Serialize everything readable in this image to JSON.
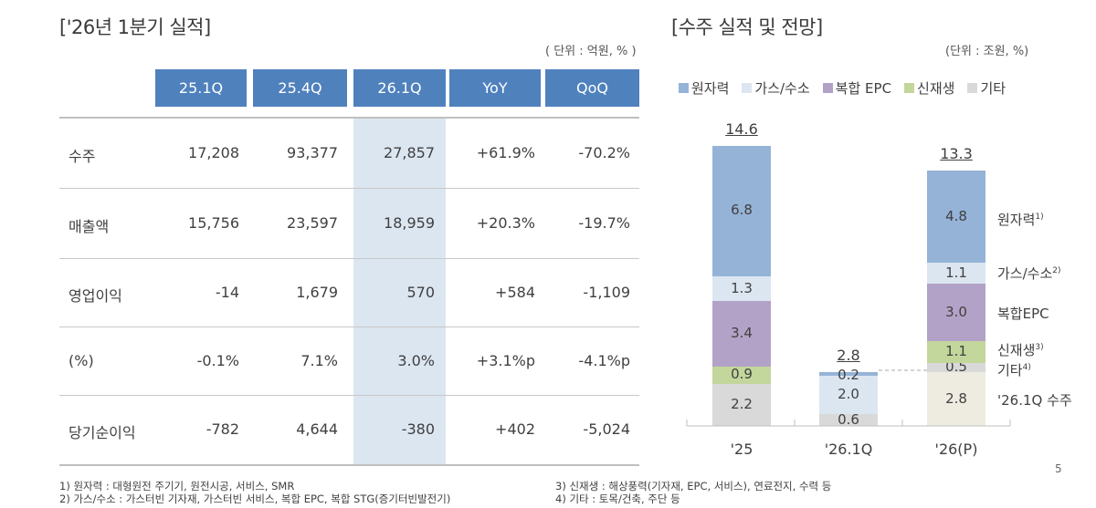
{
  "left": {
    "title": "['26년 1분기 실적]",
    "unit": "( 단위 : 억원, % )",
    "table": {
      "columns": [
        "25.1Q",
        "25.4Q",
        "26.1Q",
        "YoY",
        "QoQ"
      ],
      "highlight_column": "26.1Q",
      "rows": [
        {
          "label": "수주",
          "values": [
            "17,208",
            "93,377",
            "27,857",
            "+61.9%",
            "-70.2%"
          ]
        },
        {
          "label": "매출액",
          "values": [
            "15,756",
            "23,597",
            "18,959",
            "+20.3%",
            "-19.7%"
          ]
        },
        {
          "label": "영업이익",
          "values": [
            "-14",
            "1,679",
            "570",
            "+584",
            "-1,109"
          ]
        },
        {
          "label": "(%)",
          "values": [
            "-0.1%",
            "7.1%",
            "3.0%",
            "+3.1%p",
            "-4.1%p"
          ]
        },
        {
          "label": "당기순이익",
          "values": [
            "-782",
            "4,644",
            "-380",
            "+402",
            "-5,024"
          ]
        }
      ]
    }
  },
  "right": {
    "title": "[수주 실적 및 전망]",
    "unit": "(단위 : 조원, %)"
  },
  "colors": {
    "header": "#4f81bd",
    "highlight": "#dce6f1",
    "nuclear": "#95b3d7",
    "gas_hydrogen": "#dce6f1",
    "combined_epc": "#b3a2c7",
    "renewable": "#c3d69b",
    "other": "#d9d9d9",
    "q1_orders": "#eeece1"
  },
  "chart_data": {
    "type": "bar",
    "stacked": true,
    "title": "[수주 실적 및 전망]",
    "unit": "(단위 : 조원, %)",
    "categories": [
      "'25",
      "'26.1Q",
      "'26(P)"
    ],
    "totals": [
      "14.6",
      "2.8",
      "13.3"
    ],
    "legend": [
      "원자력",
      "가스/수소",
      "복합 EPC",
      "신재생",
      "기타"
    ],
    "legend_position": "top",
    "series": [
      {
        "name": "'26.1Q 수주",
        "key": "q1_orders",
        "values": [
          0,
          0,
          2.8
        ]
      },
      {
        "name": "기타",
        "key": "other",
        "values": [
          2.2,
          0.6,
          0.5
        ]
      },
      {
        "name": "신재생",
        "key": "renewable",
        "values": [
          0.9,
          0,
          1.1
        ]
      },
      {
        "name": "복합 EPC",
        "key": "combined_epc",
        "values": [
          3.4,
          0,
          3.0
        ]
      },
      {
        "name": "가스/수소",
        "key": "gas_hydrogen",
        "values": [
          1.3,
          2.0,
          1.1
        ]
      },
      {
        "name": "원자력",
        "key": "nuclear",
        "values": [
          6.8,
          0.2,
          4.8
        ]
      }
    ],
    "side_labels": [
      {
        "text": "원자력",
        "sup": "1)"
      },
      {
        "text": "가스/수소",
        "sup": "2)"
      },
      {
        "text": "복합EPC",
        "sup": ""
      },
      {
        "text": "신재생",
        "sup": "3)"
      },
      {
        "text": "기타",
        "sup": "4)"
      },
      {
        "text": "'26.1Q 수주",
        "sup": ""
      }
    ],
    "ylim": [
      0,
      14.6
    ]
  },
  "footnotes": [
    "1) 원자력 : 대형원전 주기기, 원전시공, 서비스, SMR",
    "2) 가스/수소 : 가스터빈 기자재, 가스터빈 서비스, 복합 EPC, 복합 STG(증기터빈발전기)",
    "3) 신재생 : 해상풍력(기자재, EPC, 서비스), 연료전지, 수력 등",
    "4) 기타 : 토목/건축, 주단 등"
  ],
  "page_number": "5"
}
